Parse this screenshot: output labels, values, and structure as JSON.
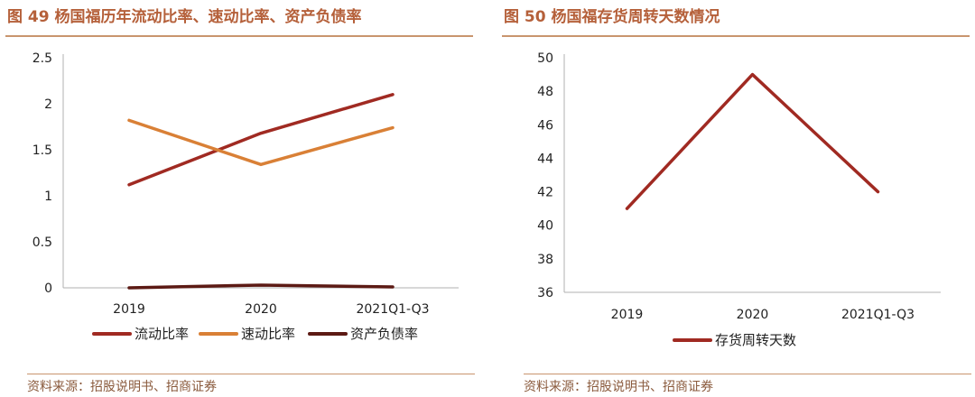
{
  "chart_data": [
    {
      "type": "line",
      "title": "图 49 杨国福历年流动比率、速动比率、资产负债率",
      "categories": [
        "2019",
        "2020",
        "2021Q1-Q3"
      ],
      "ylim": [
        0,
        2.5
      ],
      "yticks": [
        "0",
        "0.5",
        "1",
        "1.5",
        "2",
        "2.5"
      ],
      "xlabel": "",
      "ylabel": "",
      "grid": false,
      "legend_position": "bottom",
      "series": [
        {
          "name": "流动比率",
          "values": [
            1.12,
            1.68,
            2.1
          ],
          "color": "#a02a22"
        },
        {
          "name": "速动比率",
          "values": [
            1.82,
            1.34,
            1.74
          ],
          "color": "#d98036"
        },
        {
          "name": "资产负债率",
          "values": [
            0.0,
            0.03,
            0.01
          ],
          "color": "#5c1a14"
        }
      ]
    },
    {
      "type": "line",
      "title": "图 50 杨国福存货周转天数情况",
      "categories": [
        "2019",
        "2020",
        "2021Q1-Q3"
      ],
      "ylim": [
        36,
        50
      ],
      "yticks": [
        "36",
        "38",
        "40",
        "42",
        "44",
        "46",
        "48",
        "50"
      ],
      "xlabel": "",
      "ylabel": "",
      "grid": false,
      "legend_position": "bottom",
      "series": [
        {
          "name": "存货周转天数",
          "values": [
            41,
            49,
            42
          ],
          "color": "#a02a22"
        }
      ]
    }
  ],
  "source_left": "资料来源：招股说明书、招商证券",
  "source_right": "资料来源：招股说明书、招商证券"
}
